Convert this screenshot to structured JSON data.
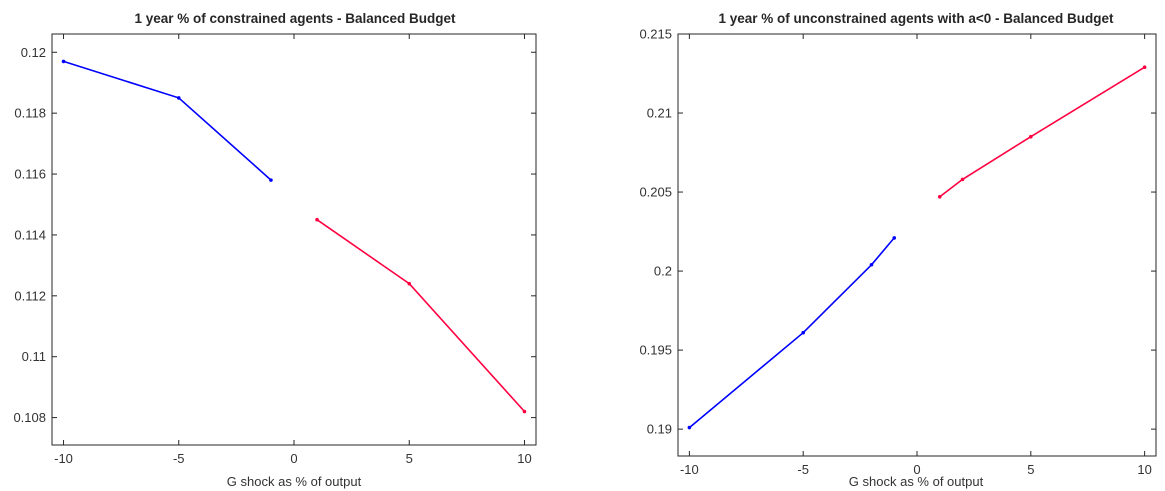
{
  "chart_data": [
    {
      "type": "line",
      "title": "1 year % of constrained agents - Balanced Budget",
      "xlabel": "G shock as % of output",
      "ylabel": "",
      "xlim": [
        -10.5,
        10.5
      ],
      "ylim": [
        0.1071,
        0.1206
      ],
      "xticks": [
        "-10",
        "-5",
        "0",
        "5",
        "10"
      ],
      "yticks": [
        "0.108",
        "0.11",
        "0.112",
        "0.114",
        "0.116",
        "0.118",
        "0.12"
      ],
      "grid": false,
      "series": [
        {
          "color": "#0000ff",
          "x": [
            -10,
            -5,
            -1
          ],
          "y": [
            0.1197,
            0.1185,
            0.1158
          ]
        },
        {
          "color": "#ff0040",
          "x": [
            1,
            5,
            10
          ],
          "y": [
            0.1145,
            0.1124,
            0.1082
          ]
        }
      ]
    },
    {
      "type": "line",
      "title": "1 year % of unconstrained agents with a<0 - Balanced Budget",
      "xlabel": "G shock as % of output",
      "ylabel": "",
      "xlim": [
        -10.5,
        10.5
      ],
      "ylim": [
        0.1883,
        0.215
      ],
      "xticks": [
        "-10",
        "-5",
        "0",
        "5",
        "10"
      ],
      "yticks": [
        "0.19",
        "0.195",
        "0.2",
        "0.205",
        "0.21",
        "0.215"
      ],
      "grid": false,
      "series": [
        {
          "color": "#0000ff",
          "x": [
            -10,
            -5,
            -2,
            -1
          ],
          "y": [
            0.1901,
            0.1961,
            0.2004,
            0.2021
          ]
        },
        {
          "color": "#ff0040",
          "x": [
            1,
            2,
            5,
            10
          ],
          "y": [
            0.2047,
            0.2058,
            0.2085,
            0.2129
          ]
        }
      ]
    }
  ]
}
